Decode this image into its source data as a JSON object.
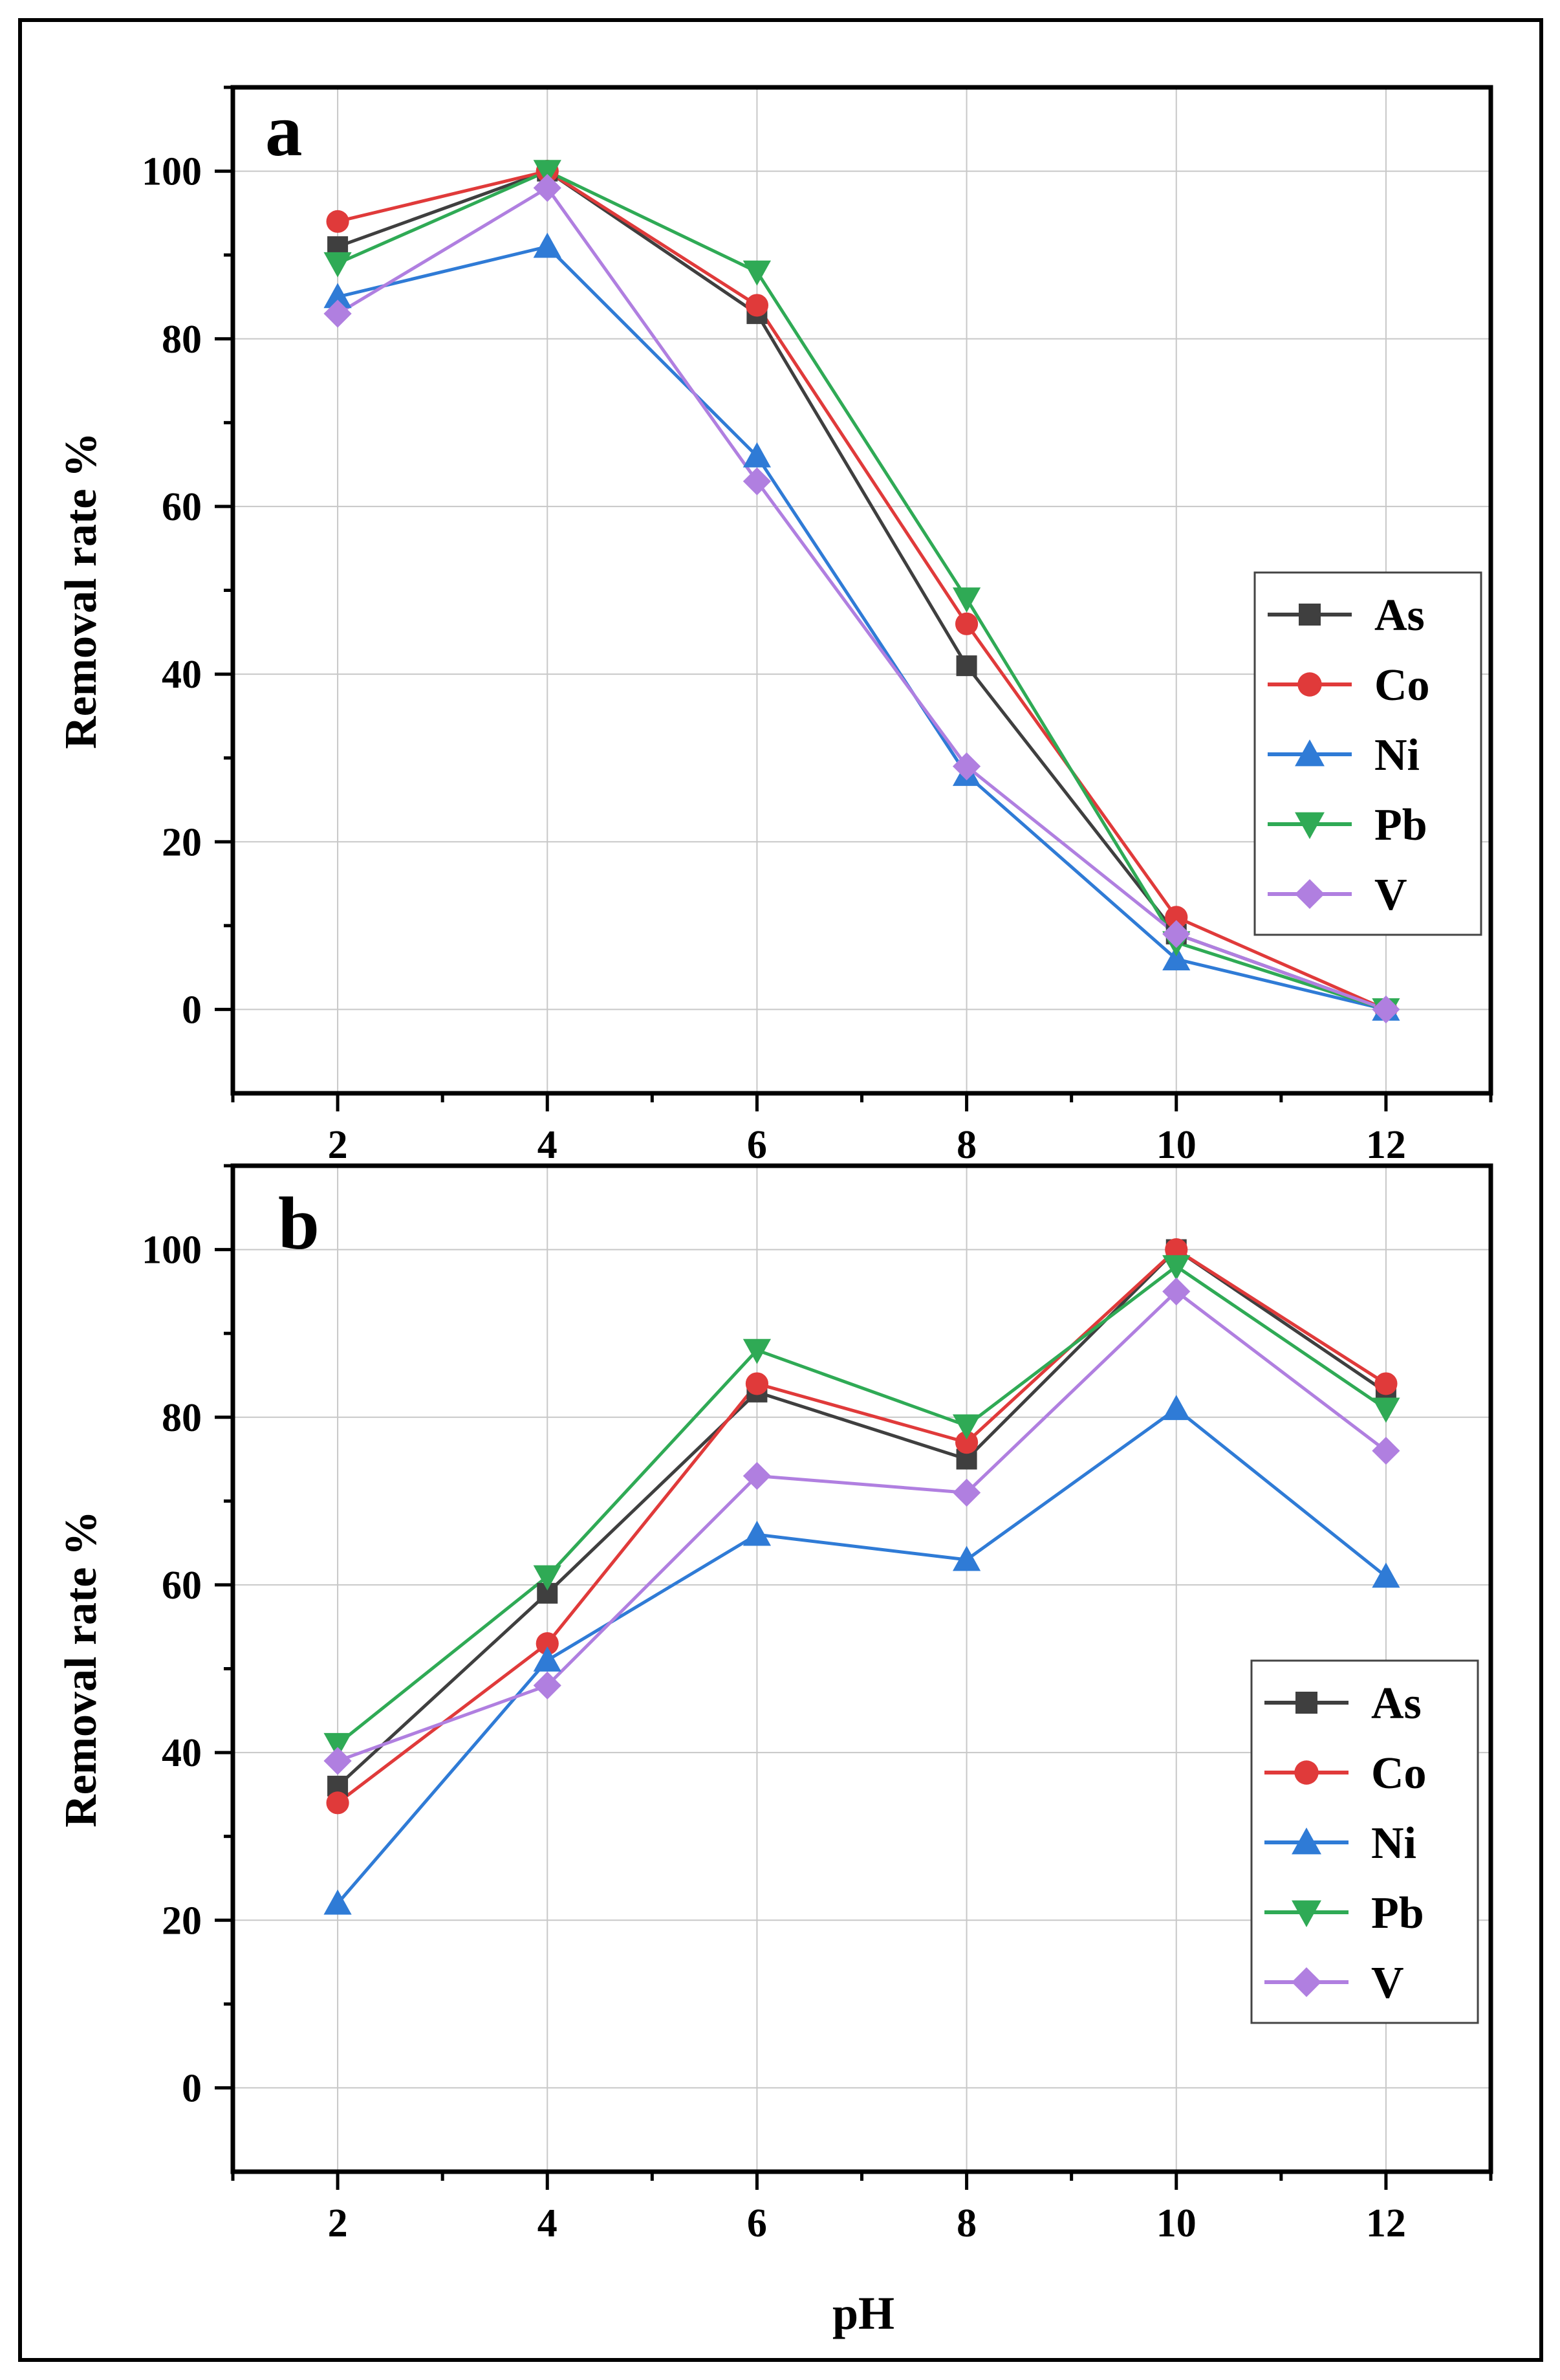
{
  "figure": {
    "x_axis_label": "pH",
    "y_axis_label": "Removal rate %"
  },
  "chart_data": [
    {
      "panel_label": "a",
      "type": "line",
      "x": [
        2,
        4,
        6,
        8,
        10,
        12
      ],
      "xlim": [
        1,
        13
      ],
      "ylim": [
        -10,
        110
      ],
      "x_ticks": [
        "2",
        "4",
        "6",
        "8",
        "10",
        "12"
      ],
      "y_ticks": [
        "0",
        "20",
        "40",
        "60",
        "80",
        "100"
      ],
      "xlabel": "",
      "ylabel": "Removal rate %",
      "grid": true,
      "legend_position": "right",
      "series": [
        {
          "name": "As",
          "color": "#3f3f3f",
          "marker": "square",
          "values": [
            91,
            100,
            83,
            41,
            9,
            0
          ]
        },
        {
          "name": "Co",
          "color": "#e03a3a",
          "marker": "circle",
          "values": [
            94,
            100,
            84,
            46,
            11,
            0
          ]
        },
        {
          "name": "Ni",
          "color": "#2f7bd6",
          "marker": "triangle-up",
          "values": [
            85,
            91,
            66,
            28,
            6,
            0
          ]
        },
        {
          "name": "Pb",
          "color": "#2faa55",
          "marker": "triangle-down",
          "values": [
            89,
            100,
            88,
            49,
            8,
            0
          ]
        },
        {
          "name": "V",
          "color": "#b07fe0",
          "marker": "diamond",
          "values": [
            83,
            98,
            63,
            29,
            9,
            0
          ]
        }
      ]
    },
    {
      "panel_label": "b",
      "type": "line",
      "x": [
        2,
        4,
        6,
        8,
        10,
        12
      ],
      "xlim": [
        1,
        13
      ],
      "ylim": [
        -10,
        110
      ],
      "x_ticks": [
        "2",
        "4",
        "6",
        "8",
        "10",
        "12"
      ],
      "y_ticks": [
        "0",
        "20",
        "40",
        "60",
        "80",
        "100"
      ],
      "xlabel": "pH",
      "ylabel": "Removal rate %",
      "grid": true,
      "legend_position": "bottom-right",
      "series": [
        {
          "name": "As",
          "color": "#3f3f3f",
          "marker": "square",
          "values": [
            36,
            59,
            83,
            75,
            100,
            83
          ]
        },
        {
          "name": "Co",
          "color": "#e03a3a",
          "marker": "circle",
          "values": [
            34,
            53,
            84,
            77,
            100,
            84
          ]
        },
        {
          "name": "Ni",
          "color": "#2f7bd6",
          "marker": "triangle-up",
          "values": [
            22,
            51,
            66,
            63,
            81,
            61
          ]
        },
        {
          "name": "Pb",
          "color": "#2faa55",
          "marker": "triangle-down",
          "values": [
            41,
            61,
            88,
            79,
            98,
            81
          ]
        },
        {
          "name": "V",
          "color": "#b07fe0",
          "marker": "diamond",
          "values": [
            39,
            48,
            73,
            71,
            95,
            76
          ]
        }
      ]
    }
  ]
}
